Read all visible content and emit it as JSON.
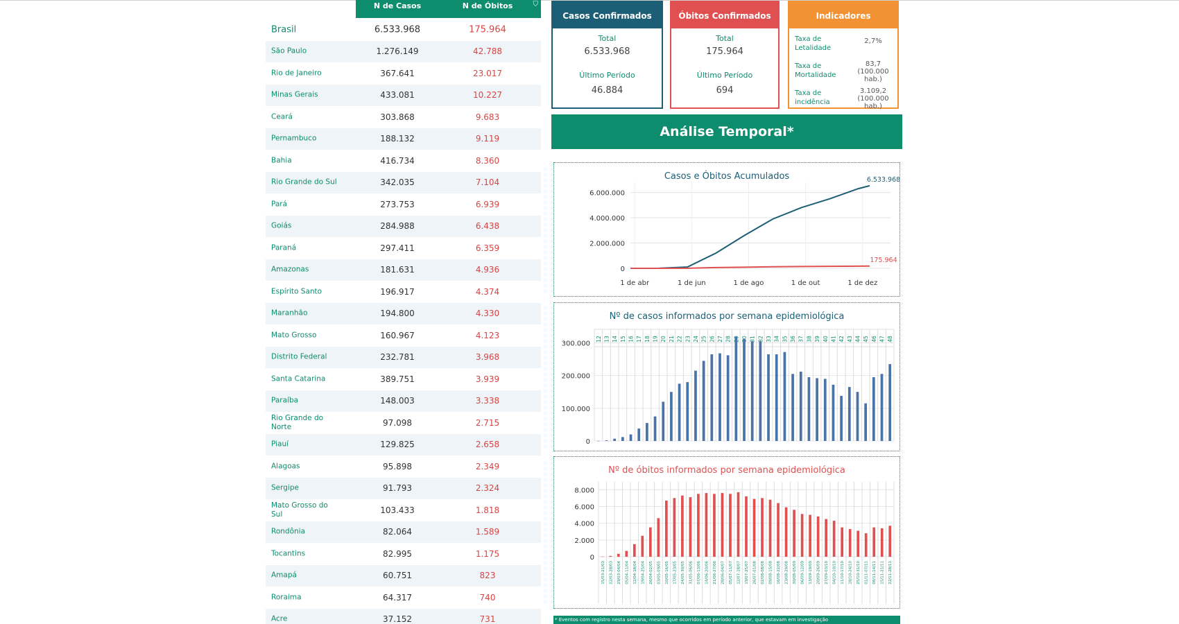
{
  "table": {
    "header_cases": "N de Casos",
    "header_deaths": "N de Óbitos",
    "rows": [
      {
        "state": "Brasil",
        "cases": "6.533.968",
        "deaths": "175.964"
      },
      {
        "state": "São Paulo",
        "cases": "1.276.149",
        "deaths": "42.788"
      },
      {
        "state": "Rio de Janeiro",
        "cases": "367.641",
        "deaths": "23.017"
      },
      {
        "state": "Minas Gerais",
        "cases": "433.081",
        "deaths": "10.227"
      },
      {
        "state": "Ceará",
        "cases": "303.868",
        "deaths": "9.683"
      },
      {
        "state": "Pernambuco",
        "cases": "188.132",
        "deaths": "9.119"
      },
      {
        "state": "Bahia",
        "cases": "416.734",
        "deaths": "8.360"
      },
      {
        "state": "Rio Grande do Sul",
        "cases": "342.035",
        "deaths": "7.104"
      },
      {
        "state": "Pará",
        "cases": "273.753",
        "deaths": "6.939"
      },
      {
        "state": "Goiás",
        "cases": "284.988",
        "deaths": "6.438"
      },
      {
        "state": "Paraná",
        "cases": "297.411",
        "deaths": "6.359"
      },
      {
        "state": "Amazonas",
        "cases": "181.631",
        "deaths": "4.936"
      },
      {
        "state": "Espírito Santo",
        "cases": "196.917",
        "deaths": "4.374"
      },
      {
        "state": "Maranhão",
        "cases": "194.800",
        "deaths": "4.330"
      },
      {
        "state": "Mato Grosso",
        "cases": "160.967",
        "deaths": "4.123"
      },
      {
        "state": "Distrito Federal",
        "cases": "232.781",
        "deaths": "3.968"
      },
      {
        "state": "Santa Catarina",
        "cases": "389.751",
        "deaths": "3.939"
      },
      {
        "state": "Paraíba",
        "cases": "148.003",
        "deaths": "3.338"
      },
      {
        "state": "Rio Grande do Norte",
        "cases": "97.098",
        "deaths": "2.715"
      },
      {
        "state": "Piauí",
        "cases": "129.825",
        "deaths": "2.658"
      },
      {
        "state": "Alagoas",
        "cases": "95.898",
        "deaths": "2.349"
      },
      {
        "state": "Sergipe",
        "cases": "91.793",
        "deaths": "2.324"
      },
      {
        "state": "Mato Grosso do Sul",
        "cases": "103.433",
        "deaths": "1.818"
      },
      {
        "state": "Rondônia",
        "cases": "82.064",
        "deaths": "1.589"
      },
      {
        "state": "Tocantins",
        "cases": "82.995",
        "deaths": "1.175"
      },
      {
        "state": "Amapá",
        "cases": "60.751",
        "deaths": "823"
      },
      {
        "state": "Roraima",
        "cases": "64.317",
        "deaths": "740"
      },
      {
        "state": "Acre",
        "cases": "37.152",
        "deaths": "731"
      }
    ]
  },
  "cards": {
    "confirmados": {
      "title": "Casos Confirmados",
      "total_label": "Total",
      "total": "6.533.968",
      "period_label": "Último Período",
      "period": "46.884"
    },
    "obitos": {
      "title": "Óbitos Confirmados",
      "total_label": "Total",
      "total": "175.964",
      "period_label": "Último Período",
      "period": "694"
    },
    "indicadores": {
      "title": "Indicadores",
      "rows": [
        {
          "label": "Taxa de Letalidade",
          "value": "2,7%"
        },
        {
          "label": "Taxa de Mortalidade",
          "value": "83,7 (100.000 hab.)"
        },
        {
          "label": "Taxa de incidência",
          "value": "3.109,2 (100.000 hab.)"
        }
      ]
    }
  },
  "banner": {
    "title": "Análise Temporal*"
  },
  "footer": {
    "note": "* Eventos com registro nesta semana, mesmo que ocorridos em período anterior, que estavam em investigação"
  },
  "colors": {
    "green": "#0e8c6e",
    "blue": "#1b5e75",
    "red": "#e05050",
    "orange": "#f39232",
    "bar_blue": "#4a74a8"
  },
  "chart_data": [
    {
      "type": "line",
      "title": "Casos e Óbitos Acumulados",
      "x_ticks": [
        "1 de abr",
        "1 de jun",
        "1 de ago",
        "1 de out",
        "1 de dez"
      ],
      "y_ticks": [
        "0",
        "2.000.000",
        "4.000.000",
        "6.000.000"
      ],
      "ylim": [
        0,
        6800000
      ],
      "x_months": [
        0,
        1,
        2,
        3,
        4,
        5,
        6,
        7,
        8,
        8.4
      ],
      "series": [
        {
          "values": [
            0,
            5000,
            100000,
            1200000,
            2600000,
            3900000,
            4800000,
            5500000,
            6300000,
            6533968
          ],
          "end_label": "6.533.968"
        },
        {
          "values": [
            0,
            300,
            7000,
            60000,
            92000,
            122000,
            144000,
            158000,
            172000,
            175964
          ],
          "end_label": "175.964"
        }
      ]
    },
    {
      "type": "bar",
      "title": "Nº de casos informados por semana epidemiológica",
      "weeks": [
        "12",
        "13",
        "14",
        "15",
        "16",
        "17",
        "18",
        "19",
        "20",
        "21",
        "22",
        "23",
        "24",
        "25",
        "26",
        "27",
        "28",
        "29",
        "30",
        "31",
        "32",
        "33",
        "34",
        "35",
        "36",
        "37",
        "38",
        "39",
        "40",
        "41",
        "42",
        "43",
        "44",
        "45",
        "46",
        "47",
        "48"
      ],
      "values": [
        300,
        2000,
        7000,
        12000,
        20000,
        38000,
        55000,
        75000,
        120000,
        150000,
        175000,
        180000,
        215000,
        245000,
        265000,
        268000,
        262000,
        318000,
        312000,
        305000,
        305000,
        265000,
        265000,
        272000,
        205000,
        212000,
        195000,
        192000,
        190000,
        172000,
        138000,
        165000,
        150000,
        115000,
        195000,
        205000,
        235000
      ],
      "y_ticks": [
        "0",
        "100.000",
        "200.000",
        "300.000"
      ],
      "ylim": [
        0,
        335000
      ]
    },
    {
      "type": "bar",
      "title": "Nº de óbitos informados por semana epidemiológica",
      "weeks": [
        "15/03-21/03",
        "22/03-28/03",
        "29/03-04/04",
        "05/04-11/04",
        "12/04-18/04",
        "19/04-25/04",
        "26/04-02/05",
        "03/05-09/05",
        "10/05-16/05",
        "17/05-23/05",
        "24/05-30/05",
        "31/05-06/06",
        "07/06-13/06",
        "14/06-20/06",
        "21/06-27/06",
        "28/06-04/07",
        "05/07-11/07",
        "12/07-18/07",
        "19/07-25/07",
        "26/07-01/08",
        "02/08-08/08",
        "09/08-15/08",
        "16/08-22/08",
        "23/08-29/08",
        "30/08-05/09",
        "06/09-12/09",
        "13/09-19/09",
        "20/09-26/09",
        "27/09-03/10",
        "04/10-10/10",
        "11/10-17/10",
        "18/10-24/10",
        "25/10-31/10",
        "01/11-07/11",
        "08/11-14/11",
        "15/11-21/11",
        "22/11-28/11"
      ],
      "values": [
        20,
        100,
        350,
        700,
        1500,
        2500,
        3500,
        4600,
        6700,
        7000,
        7300,
        7100,
        7500,
        7600,
        7500,
        7600,
        7500,
        7700,
        7200,
        6900,
        7000,
        6800,
        6400,
        5900,
        5600,
        5100,
        5000,
        4800,
        4500,
        4300,
        3500,
        3300,
        3100,
        2800,
        3500,
        3400,
        3700
      ],
      "y_ticks": [
        "0",
        "2.000",
        "4.000",
        "6.000",
        "8.000"
      ],
      "ylim": [
        0,
        8600
      ]
    }
  ]
}
